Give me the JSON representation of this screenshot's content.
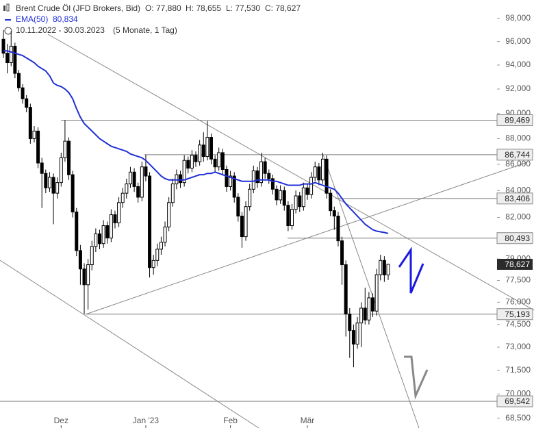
{
  "chart_data": {
    "type": "candlestick",
    "title": "Brent Crude Öl (JFD Brokers, Bid)",
    "header_stats": [
      "O: 77,880",
      "H: 78,655",
      "L: 77,530",
      "C: 78,627"
    ],
    "subtitle": "10.11.2022 - 30.03.2023",
    "period": "(5 Monate, 1 Tag)",
    "log_scale": true,
    "ylim": [
      67900,
      99640
    ],
    "yticks": [
      {
        "value": 98000,
        "label": "98,000"
      },
      {
        "value": 96000,
        "label": "96,000"
      },
      {
        "value": 94000,
        "label": "94,000"
      },
      {
        "value": 92000,
        "label": "92,000"
      },
      {
        "value": 90000,
        "label": "90,000"
      },
      {
        "value": 88000,
        "label": "88,000"
      },
      {
        "value": 86000,
        "label": "86,000"
      },
      {
        "value": 84000,
        "label": "84,000"
      },
      {
        "value": 82000,
        "label": "82,000"
      },
      {
        "value": 79000,
        "label": "79,000"
      },
      {
        "value": 77500,
        "label": "77,500"
      },
      {
        "value": 76000,
        "label": "76,000"
      },
      {
        "value": 74500,
        "label": "74,500"
      },
      {
        "value": 73000,
        "label": "73,000"
      },
      {
        "value": 71500,
        "label": "71,500"
      },
      {
        "value": 70000,
        "label": "70,000"
      },
      {
        "value": 68500,
        "label": "68,500"
      }
    ],
    "categories": [
      null,
      null,
      null,
      null,
      null,
      null,
      null,
      null,
      null,
      null,
      null,
      null,
      null,
      null,
      null,
      "Dez",
      null,
      null,
      null,
      null,
      null,
      null,
      null,
      null,
      null,
      null,
      null,
      null,
      null,
      null,
      null,
      null,
      null,
      null,
      null,
      null,
      null,
      "Jan '23",
      null,
      null,
      null,
      null,
      null,
      null,
      null,
      null,
      null,
      null,
      null,
      null,
      null,
      null,
      null,
      null,
      null,
      null,
      null,
      null,
      null,
      "Feb",
      null,
      null,
      null,
      null,
      null,
      null,
      null,
      null,
      null,
      null,
      null,
      null,
      null,
      null,
      null,
      null,
      null,
      null,
      null,
      "Mär",
      null,
      null,
      null,
      null,
      null,
      null,
      null,
      null,
      null,
      null,
      null,
      null,
      null,
      null,
      null,
      null,
      null,
      null,
      null,
      null,
      null
    ],
    "open": [
      96200,
      95000,
      94200,
      95600,
      93300,
      92100,
      91200,
      90500,
      88000,
      88600,
      86100,
      85300,
      84200,
      85000,
      83800,
      84600,
      86500,
      87800,
      85200,
      82400,
      79600,
      78300,
      77200,
      78600,
      79900,
      80800,
      80100,
      81400,
      80500,
      82200,
      81600,
      83100,
      83800,
      84500,
      85400,
      84300,
      83500,
      85800,
      85100,
      78400,
      78900,
      79700,
      80200,
      81300,
      83100,
      84500,
      85200,
      84600,
      86300,
      85700,
      86700,
      86200,
      87500,
      86600,
      88100,
      86400,
      85800,
      86900,
      85600,
      84300,
      85100,
      83500,
      82100,
      80600,
      82800,
      84100,
      85500,
      84600,
      86200,
      85300,
      84900,
      84100,
      83300,
      84000,
      82900,
      81400,
      82600,
      83600,
      82800,
      84200,
      83700,
      85000,
      85800,
      84800,
      86400,
      83800,
      82500,
      82100,
      80300,
      78600,
      75200,
      74100,
      73200,
      74600,
      75600,
      74800,
      76300,
      75400,
      77900,
      78900,
      77880
    ],
    "high": [
      97000,
      95800,
      96900,
      95900,
      93600,
      92400,
      91500,
      90800,
      89000,
      88900,
      86500,
      85600,
      85400,
      85300,
      85000,
      86900,
      89469,
      88100,
      85500,
      82700,
      80000,
      78700,
      79000,
      80300,
      81200,
      81100,
      81800,
      81700,
      82600,
      82500,
      83500,
      84200,
      84900,
      85800,
      85700,
      84600,
      86200,
      86744,
      85400,
      79300,
      80100,
      80600,
      81700,
      83500,
      84900,
      85600,
      85500,
      86700,
      86600,
      87100,
      87000,
      87900,
      88500,
      89400,
      88400,
      86700,
      87300,
      87200,
      85900,
      85500,
      85400,
      83800,
      82400,
      83200,
      84500,
      85900,
      85800,
      86900,
      86500,
      85600,
      85200,
      84400,
      84400,
      84300,
      83200,
      83000,
      84000,
      83900,
      84600,
      84500,
      85400,
      86200,
      86100,
      86900,
      86700,
      84100,
      82800,
      82400,
      80600,
      78900,
      75600,
      74500,
      75000,
      76000,
      77000,
      76700,
      76600,
      78300,
      79300,
      79200,
      78655
    ],
    "low": [
      94600,
      93300,
      93900,
      92900,
      91800,
      90800,
      90100,
      87600,
      87700,
      85700,
      82700,
      83800,
      83900,
      81500,
      83400,
      84300,
      86200,
      84800,
      82000,
      79200,
      77200,
      75193,
      75500,
      78200,
      79500,
      79700,
      79800,
      80100,
      80200,
      81200,
      81300,
      82700,
      83400,
      84200,
      83900,
      83100,
      83200,
      84700,
      77700,
      77900,
      78500,
      79300,
      79900,
      81000,
      82800,
      84100,
      84200,
      84300,
      85300,
      85400,
      85800,
      85900,
      86200,
      86300,
      86000,
      85400,
      85500,
      85200,
      83900,
      84000,
      83100,
      81700,
      79800,
      80300,
      82500,
      83800,
      84200,
      84300,
      84900,
      84500,
      83700,
      82900,
      83000,
      82500,
      81000,
      81100,
      82300,
      82400,
      82500,
      83300,
      83400,
      84700,
      84400,
      84500,
      83400,
      82100,
      81100,
      79900,
      77200,
      73700,
      72300,
      71700,
      72900,
      73000,
      74500,
      74500,
      75000,
      75100,
      77500,
      77400,
      77530
    ],
    "close": [
      95000,
      94200,
      95600,
      93300,
      92100,
      91200,
      90500,
      88000,
      88600,
      86100,
      85300,
      84200,
      85000,
      83800,
      84600,
      86500,
      87800,
      85200,
      82400,
      79600,
      78300,
      77200,
      78600,
      79900,
      80800,
      80100,
      81400,
      80500,
      82200,
      81600,
      83100,
      83800,
      84500,
      85400,
      84300,
      83500,
      85800,
      85100,
      78400,
      78900,
      79700,
      80200,
      81300,
      83100,
      84500,
      85200,
      84600,
      86300,
      85700,
      86700,
      86200,
      87500,
      86600,
      88100,
      86400,
      85800,
      86900,
      85600,
      84300,
      85100,
      83500,
      82100,
      80600,
      82800,
      84100,
      85500,
      84600,
      86200,
      85300,
      84900,
      84100,
      83300,
      84000,
      82900,
      81400,
      82600,
      83600,
      82800,
      84200,
      83700,
      85000,
      85800,
      84800,
      86400,
      83800,
      82500,
      82100,
      80300,
      78600,
      75200,
      74100,
      73200,
      74600,
      75600,
      74800,
      76300,
      75400,
      77900,
      78900,
      77880,
      78627
    ],
    "color_up": "#ffffff",
    "color_down": "#000000",
    "series": [
      {
        "name": "EMA(50)",
        "color": "#1f2fd6",
        "value_label": "80,834",
        "values": [
          95200,
          95200,
          95100,
          95000,
          94900,
          94800,
          94600,
          94400,
          94200,
          93900,
          93700,
          93500,
          93100,
          92500,
          92300,
          92200,
          92000,
          91700,
          91200,
          90400,
          89700,
          89200,
          88900,
          88600,
          88300,
          88000,
          87800,
          87600,
          87400,
          87300,
          87200,
          87100,
          87000,
          86800,
          86700,
          86600,
          86500,
          86300,
          86000,
          85700,
          85400,
          85100,
          84900,
          84800,
          84800,
          84800,
          84800,
          84800,
          84900,
          85000,
          85100,
          85200,
          85200,
          85300,
          85300,
          85400,
          85300,
          85200,
          85100,
          85000,
          84900,
          84800,
          84700,
          84700,
          84700,
          84700,
          84800,
          84800,
          84800,
          84800,
          84700,
          84700,
          84600,
          84500,
          84400,
          84400,
          84400,
          84400,
          84500,
          84500,
          84500,
          84600,
          84500,
          84400,
          84300,
          84200,
          84100,
          83800,
          83400,
          83000,
          82700,
          82400,
          82100,
          81800,
          81500,
          81300,
          81100,
          81000,
          80950,
          80900,
          80834
        ]
      }
    ],
    "levels": [
      {
        "value": 89469,
        "label": "89,469"
      },
      {
        "value": 86744,
        "label": "86,744"
      },
      {
        "value": 83406,
        "label": "83,406"
      },
      {
        "value": 80493,
        "label": "80,493"
      },
      {
        "value": 75193,
        "label": "75,193"
      },
      {
        "value": 69542,
        "label": "69,542"
      }
    ],
    "last_price": {
      "value": 78627,
      "label": "78,627"
    }
  }
}
